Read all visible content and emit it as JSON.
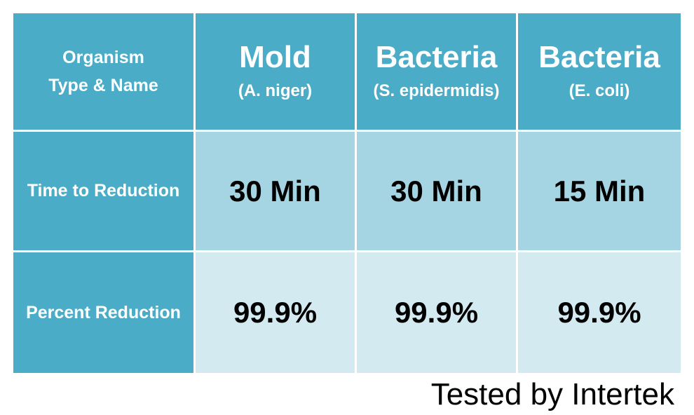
{
  "chart_data": {
    "type": "table",
    "corner_header": [
      "Organism",
      "Type & Name"
    ],
    "columns": [
      {
        "name": "Mold",
        "species": "(A. niger)"
      },
      {
        "name": "Bacteria",
        "species": "(S. epidermidis)"
      },
      {
        "name": "Bacteria",
        "species": "(E. coli)"
      }
    ],
    "rows": [
      {
        "label": "Time to Reduction",
        "values": [
          "30 Min",
          "30 Min",
          "15 Min"
        ]
      },
      {
        "label": "Percent Reduction",
        "values": [
          "99.9%",
          "99.9%",
          "99.9%"
        ]
      }
    ]
  },
  "footer": {
    "credit": "Tested by Intertek"
  },
  "colors": {
    "header": "#4aacc6",
    "row_dark": "#a5d5e2",
    "row_light": "#d2eaf0"
  }
}
